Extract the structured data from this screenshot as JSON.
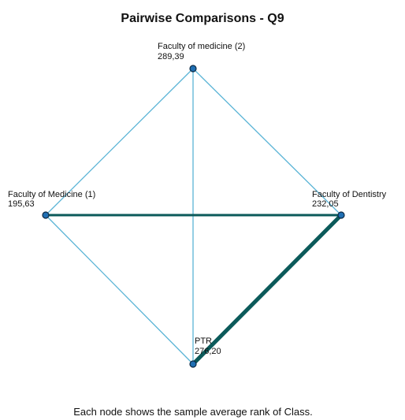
{
  "title": "Pairwise Comparisons - Q9",
  "nodes": [
    {
      "label": "Faculty of medicine (2)",
      "value": "289,39"
    },
    {
      "label": "Faculty of Medicine (1)",
      "value": "195,63"
    },
    {
      "label": "Faculty of Dentistry",
      "value": "232,05"
    },
    {
      "label": "PTR",
      "value": "276,20"
    }
  ],
  "footer": "Each node shows the sample average rank of Class."
}
